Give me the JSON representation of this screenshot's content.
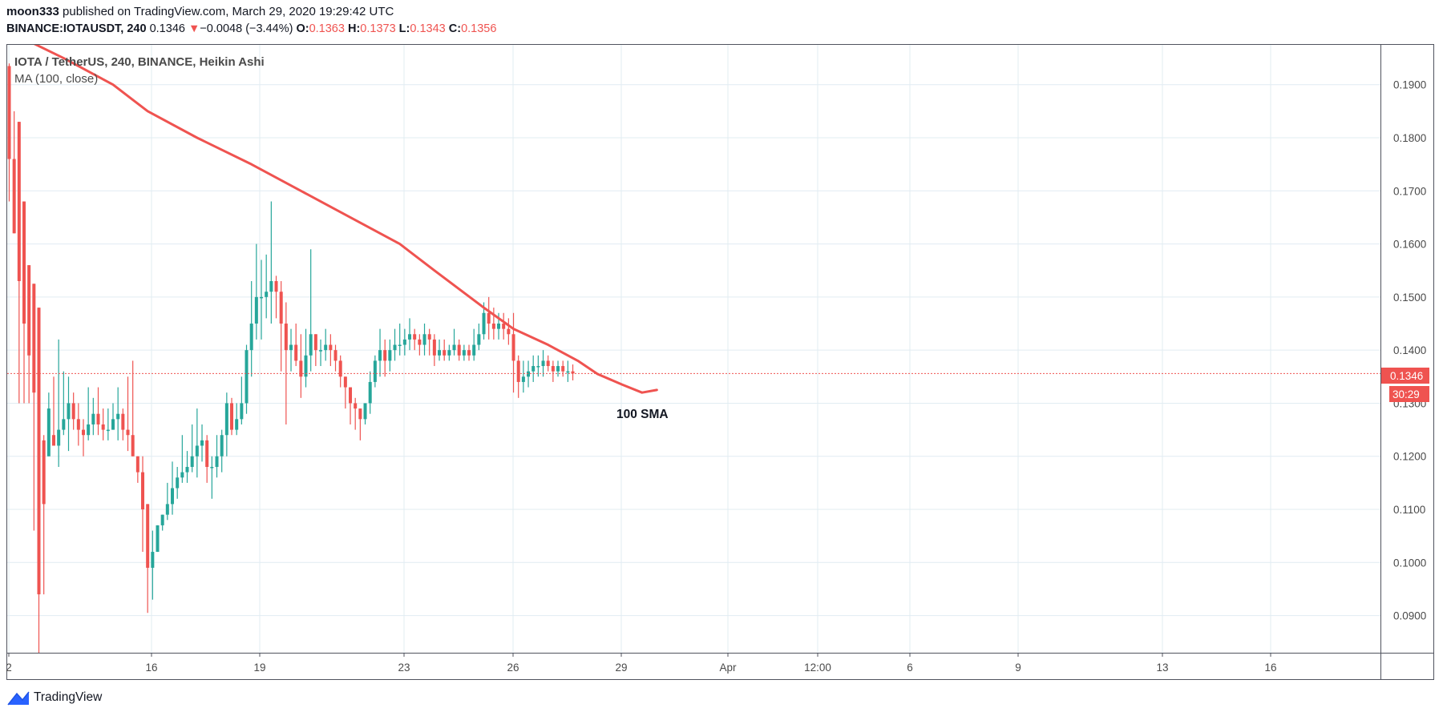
{
  "header": {
    "user": "moon333",
    "published_text": "published on TradingView.com, March 29, 2020 19:29:42 UTC",
    "symbol": "BINANCE:IOTAUSDT, 240",
    "last": "0.1346",
    "change_arrow": "▼",
    "change": "−0.0048 (−3.44%)",
    "o_label": "O:",
    "o_value": "0.1363",
    "h_label": "H:",
    "h_value": "0.1373",
    "l_label": "L:",
    "l_value": "0.1343",
    "c_label": "C:",
    "c_value": "0.1356"
  },
  "footer": {
    "brand": "TradingView",
    "logo_icon": "tradingview-logo-icon"
  },
  "colors": {
    "up": "#26a69a",
    "down": "#ef5350",
    "ma": "#ef5350",
    "grid": "#e1ecf2",
    "axis_text": "#4a4a4a"
  },
  "chart_data": {
    "type": "candlestick",
    "title": "IOTA / TetherUS, 240, BINANCE, Heikin Ashi",
    "indicator_label": "MA (100, close)",
    "annotation": "100 SMA",
    "last_price_label": "0.1346",
    "countdown_label": "30:29",
    "last_price": 0.1356,
    "ylim": [
      0.083,
      0.1975
    ],
    "yticks": [
      "0.1900",
      "0.1800",
      "0.1700",
      "0.1600",
      "0.1500",
      "0.1400",
      "0.1300",
      "0.1200",
      "0.1100",
      "0.1000",
      "0.0900"
    ],
    "xlabels": [
      "2",
      "16",
      "19",
      "23",
      "26",
      "29",
      "Apr",
      "12:00",
      "6",
      "9",
      "13",
      "16"
    ],
    "grid": true,
    "candles": [
      [
        0.1935,
        0.176,
        0.194,
        0.168
      ],
      [
        0.176,
        0.162,
        0.185,
        0.162
      ],
      [
        0.183,
        0.153,
        0.183,
        0.13
      ],
      [
        0.168,
        0.145,
        0.168,
        0.13
      ],
      [
        0.156,
        0.139,
        0.156,
        0.13
      ],
      [
        0.1525,
        0.132,
        0.1525,
        0.106
      ],
      [
        0.148,
        0.094,
        0.148,
        0.083
      ],
      [
        0.123,
        0.111,
        0.124,
        0.094
      ],
      [
        0.12,
        0.129,
        0.132,
        0.12
      ],
      [
        0.124,
        0.122,
        0.135,
        0.122
      ],
      [
        0.122,
        0.125,
        0.142,
        0.118
      ],
      [
        0.125,
        0.127,
        0.136,
        0.124
      ],
      [
        0.127,
        0.13,
        0.135,
        0.121
      ],
      [
        0.13,
        0.127,
        0.132,
        0.125
      ],
      [
        0.127,
        0.125,
        0.13,
        0.122
      ],
      [
        0.125,
        0.124,
        0.127,
        0.12
      ],
      [
        0.124,
        0.126,
        0.133,
        0.123
      ],
      [
        0.126,
        0.128,
        0.131,
        0.124
      ],
      [
        0.128,
        0.126,
        0.133,
        0.124
      ],
      [
        0.126,
        0.125,
        0.129,
        0.123
      ],
      [
        0.125,
        0.125,
        0.129,
        0.123
      ],
      [
        0.125,
        0.127,
        0.13,
        0.125
      ],
      [
        0.127,
        0.128,
        0.133,
        0.123
      ],
      [
        0.128,
        0.125,
        0.129,
        0.123
      ],
      [
        0.125,
        0.124,
        0.135,
        0.121
      ],
      [
        0.124,
        0.12,
        0.138,
        0.12
      ],
      [
        0.12,
        0.117,
        0.12,
        0.115
      ],
      [
        0.117,
        0.11,
        0.12,
        0.102
      ],
      [
        0.111,
        0.099,
        0.111,
        0.0905
      ],
      [
        0.099,
        0.102,
        0.106,
        0.093
      ],
      [
        0.102,
        0.107,
        0.107,
        0.102
      ],
      [
        0.107,
        0.109,
        0.109,
        0.106
      ],
      [
        0.109,
        0.111,
        0.115,
        0.108
      ],
      [
        0.111,
        0.114,
        0.119,
        0.109
      ],
      [
        0.114,
        0.116,
        0.118,
        0.112
      ],
      [
        0.116,
        0.117,
        0.124,
        0.115
      ],
      [
        0.117,
        0.118,
        0.121,
        0.115
      ],
      [
        0.118,
        0.12,
        0.126,
        0.117
      ],
      [
        0.12,
        0.122,
        0.129,
        0.116
      ],
      [
        0.122,
        0.123,
        0.126,
        0.119
      ],
      [
        0.123,
        0.118,
        0.124,
        0.115
      ],
      [
        0.118,
        0.118,
        0.12,
        0.112
      ],
      [
        0.118,
        0.12,
        0.124,
        0.116
      ],
      [
        0.12,
        0.124,
        0.125,
        0.117
      ],
      [
        0.124,
        0.13,
        0.132,
        0.12
      ],
      [
        0.13,
        0.125,
        0.131,
        0.124
      ],
      [
        0.125,
        0.127,
        0.13,
        0.124
      ],
      [
        0.127,
        0.13,
        0.135,
        0.126
      ],
      [
        0.13,
        0.14,
        0.141,
        0.128
      ],
      [
        0.14,
        0.145,
        0.153,
        0.135
      ],
      [
        0.145,
        0.15,
        0.16,
        0.142
      ],
      [
        0.15,
        0.15,
        0.157,
        0.142
      ],
      [
        0.15,
        0.151,
        0.158,
        0.146
      ],
      [
        0.151,
        0.153,
        0.168,
        0.145
      ],
      [
        0.153,
        0.151,
        0.154,
        0.146
      ],
      [
        0.151,
        0.145,
        0.153,
        0.136
      ],
      [
        0.145,
        0.14,
        0.149,
        0.126
      ],
      [
        0.14,
        0.141,
        0.144,
        0.136
      ],
      [
        0.141,
        0.138,
        0.145,
        0.137
      ],
      [
        0.138,
        0.135,
        0.143,
        0.131
      ],
      [
        0.135,
        0.139,
        0.144,
        0.133
      ],
      [
        0.139,
        0.143,
        0.159,
        0.136
      ],
      [
        0.143,
        0.14,
        0.143,
        0.137
      ],
      [
        0.14,
        0.14,
        0.142,
        0.137
      ],
      [
        0.14,
        0.141,
        0.144,
        0.138
      ],
      [
        0.141,
        0.14,
        0.143,
        0.137
      ],
      [
        0.14,
        0.138,
        0.141,
        0.136
      ],
      [
        0.138,
        0.135,
        0.139,
        0.133
      ],
      [
        0.135,
        0.133,
        0.135,
        0.129
      ],
      [
        0.133,
        0.13,
        0.133,
        0.126
      ],
      [
        0.13,
        0.129,
        0.131,
        0.125
      ],
      [
        0.129,
        0.127,
        0.129,
        0.123
      ],
      [
        0.127,
        0.13,
        0.13,
        0.126
      ],
      [
        0.13,
        0.134,
        0.136,
        0.128
      ],
      [
        0.134,
        0.138,
        0.139,
        0.133
      ],
      [
        0.138,
        0.14,
        0.144,
        0.135
      ],
      [
        0.14,
        0.138,
        0.142,
        0.135
      ],
      [
        0.138,
        0.14,
        0.142,
        0.136
      ],
      [
        0.14,
        0.141,
        0.144,
        0.138
      ],
      [
        0.141,
        0.141,
        0.145,
        0.139
      ],
      [
        0.141,
        0.142,
        0.144,
        0.139
      ],
      [
        0.142,
        0.143,
        0.146,
        0.14
      ],
      [
        0.143,
        0.142,
        0.144,
        0.14
      ],
      [
        0.142,
        0.141,
        0.143,
        0.139
      ],
      [
        0.141,
        0.143,
        0.145,
        0.139
      ],
      [
        0.143,
        0.142,
        0.144,
        0.139
      ],
      [
        0.142,
        0.139,
        0.143,
        0.137
      ],
      [
        0.139,
        0.14,
        0.142,
        0.138
      ],
      [
        0.14,
        0.139,
        0.142,
        0.138
      ],
      [
        0.139,
        0.14,
        0.141,
        0.138
      ],
      [
        0.14,
        0.141,
        0.144,
        0.139
      ],
      [
        0.141,
        0.139,
        0.142,
        0.138
      ],
      [
        0.139,
        0.14,
        0.141,
        0.138
      ],
      [
        0.14,
        0.139,
        0.141,
        0.138
      ],
      [
        0.139,
        0.141,
        0.144,
        0.138
      ],
      [
        0.141,
        0.143,
        0.145,
        0.14
      ],
      [
        0.143,
        0.147,
        0.149,
        0.142
      ],
      [
        0.147,
        0.145,
        0.15,
        0.142
      ],
      [
        0.145,
        0.144,
        0.148,
        0.142
      ],
      [
        0.144,
        0.145,
        0.147,
        0.142
      ],
      [
        0.145,
        0.144,
        0.147,
        0.142
      ],
      [
        0.144,
        0.143,
        0.146,
        0.141
      ],
      [
        0.143,
        0.138,
        0.147,
        0.132
      ],
      [
        0.138,
        0.134,
        0.139,
        0.131
      ],
      [
        0.134,
        0.135,
        0.138,
        0.132
      ],
      [
        0.135,
        0.136,
        0.138,
        0.133
      ],
      [
        0.136,
        0.137,
        0.139,
        0.134
      ],
      [
        0.137,
        0.137,
        0.139,
        0.135
      ],
      [
        0.137,
        0.138,
        0.14,
        0.135
      ],
      [
        0.138,
        0.137,
        0.139,
        0.136
      ],
      [
        0.137,
        0.136,
        0.138,
        0.134
      ],
      [
        0.136,
        0.137,
        0.138,
        0.135
      ],
      [
        0.137,
        0.136,
        0.138,
        0.135
      ],
      [
        0.136,
        0.136,
        0.138,
        0.134
      ],
      [
        0.136,
        0.1356,
        0.1373,
        0.1343
      ]
    ],
    "ma": [
      [
        0,
        0.2
      ],
      [
        11,
        0.195
      ],
      [
        21,
        0.19
      ],
      [
        28,
        0.185
      ],
      [
        38,
        0.18
      ],
      [
        49,
        0.175
      ],
      [
        59,
        0.17
      ],
      [
        65,
        0.167
      ],
      [
        79,
        0.16
      ],
      [
        86,
        0.155
      ],
      [
        96,
        0.148
      ],
      [
        102,
        0.144
      ],
      [
        109,
        0.141
      ],
      [
        115,
        0.138
      ],
      [
        119,
        0.1355
      ],
      [
        124,
        0.1335
      ],
      [
        128,
        0.132
      ],
      [
        131,
        0.1325
      ]
    ]
  }
}
